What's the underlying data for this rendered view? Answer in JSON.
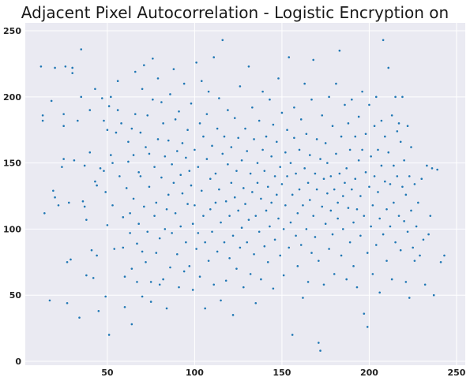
{
  "chart_data": {
    "type": "scatter",
    "title": "Adjacent Pixel Autocorrelation - Logistic Encryption on Image",
    "xlabel": "",
    "ylabel": "",
    "xlim": [
      3,
      255
    ],
    "ylim": [
      -3,
      256
    ],
    "xticks": [
      50,
      100,
      150,
      200,
      250
    ],
    "yticks": [
      0,
      50,
      100,
      150,
      200,
      250
    ],
    "grid": true,
    "colors": {
      "background": "#eaeaf2",
      "grid": "#ffffff",
      "point": "#1f77b4"
    },
    "points": [
      [
        12,
        223
      ],
      [
        13,
        186
      ],
      [
        13,
        182
      ],
      [
        14,
        112
      ],
      [
        17,
        46
      ],
      [
        18,
        197
      ],
      [
        19,
        129
      ],
      [
        20,
        222
      ],
      [
        20,
        124
      ],
      [
        22,
        118
      ],
      [
        24,
        147
      ],
      [
        25,
        187
      ],
      [
        25,
        178
      ],
      [
        25,
        153
      ],
      [
        26,
        223
      ],
      [
        27,
        75
      ],
      [
        27,
        44
      ],
      [
        28,
        120
      ],
      [
        29,
        77
      ],
      [
        30,
        218
      ],
      [
        30,
        222
      ],
      [
        31,
        152
      ],
      [
        33,
        182
      ],
      [
        34,
        33
      ],
      [
        35,
        236
      ],
      [
        35,
        200
      ],
      [
        36,
        121
      ],
      [
        37,
        148
      ],
      [
        37,
        117
      ],
      [
        38,
        65
      ],
      [
        38,
        107
      ],
      [
        40,
        158
      ],
      [
        40,
        190
      ],
      [
        41,
        84
      ],
      [
        42,
        63
      ],
      [
        43,
        136
      ],
      [
        43,
        206
      ],
      [
        44,
        133
      ],
      [
        44,
        80
      ],
      [
        45,
        38
      ],
      [
        46,
        146
      ],
      [
        47,
        199
      ],
      [
        48,
        144
      ],
      [
        48,
        182
      ],
      [
        49,
        49
      ],
      [
        49,
        128
      ],
      [
        50,
        103
      ],
      [
        50,
        175
      ],
      [
        51,
        20
      ],
      [
        51,
        193
      ],
      [
        52,
        200
      ],
      [
        52,
        156
      ],
      [
        53,
        150
      ],
      [
        53,
        118
      ],
      [
        54,
        85
      ],
      [
        55,
        173
      ],
      [
        56,
        212
      ],
      [
        56,
        190
      ],
      [
        57,
        140
      ],
      [
        58,
        180
      ],
      [
        59,
        109
      ],
      [
        59,
        86
      ],
      [
        60,
        64
      ],
      [
        60,
        41
      ],
      [
        61,
        131
      ],
      [
        62,
        166
      ],
      [
        62,
        151
      ],
      [
        63,
        112
      ],
      [
        63,
        97
      ],
      [
        64,
        176
      ],
      [
        64,
        70
      ],
      [
        64,
        28
      ],
      [
        65,
        123
      ],
      [
        65,
        156
      ],
      [
        66,
        219
      ],
      [
        66,
        187
      ],
      [
        67,
        89
      ],
      [
        67,
        60
      ],
      [
        68,
        143
      ],
      [
        68,
        104
      ],
      [
        69,
        173
      ],
      [
        69,
        140
      ],
      [
        70,
        49
      ],
      [
        70,
        206
      ],
      [
        70,
        83
      ],
      [
        71,
        224
      ],
      [
        71,
        117
      ],
      [
        72,
        162
      ],
      [
        72,
        75
      ],
      [
        73,
        98
      ],
      [
        73,
        186
      ],
      [
        74,
        157
      ],
      [
        74,
        132
      ],
      [
        75,
        45
      ],
      [
        75,
        60
      ],
      [
        76,
        229
      ],
      [
        76,
        198
      ],
      [
        77,
        147
      ],
      [
        77,
        110
      ],
      [
        78,
        120
      ],
      [
        78,
        82
      ],
      [
        79,
        168
      ],
      [
        79,
        214
      ],
      [
        80,
        93
      ],
      [
        80,
        58
      ],
      [
        81,
        196
      ],
      [
        81,
        139
      ],
      [
        82,
        180
      ],
      [
        82,
        62
      ],
      [
        83,
        155
      ],
      [
        83,
        100
      ],
      [
        84,
        115
      ],
      [
        84,
        40
      ],
      [
        85,
        167
      ],
      [
        85,
        126
      ],
      [
        86,
        202
      ],
      [
        86,
        71
      ],
      [
        87,
        149
      ],
      [
        87,
        97
      ],
      [
        88,
        221
      ],
      [
        88,
        135
      ],
      [
        89,
        183
      ],
      [
        89,
        112
      ],
      [
        90,
        159
      ],
      [
        90,
        81
      ],
      [
        91,
        56
      ],
      [
        91,
        189
      ],
      [
        92,
        141
      ],
      [
        92,
        102
      ],
      [
        93,
        127
      ],
      [
        93,
        165
      ],
      [
        94,
        68
      ],
      [
        94,
        210
      ],
      [
        95,
        154
      ],
      [
        95,
        90
      ],
      [
        96,
        119
      ],
      [
        96,
        175
      ],
      [
        97,
        144
      ],
      [
        97,
        72
      ],
      [
        98,
        195
      ],
      [
        98,
        133
      ],
      [
        99,
        104
      ],
      [
        99,
        54
      ],
      [
        100,
        160
      ],
      [
        100,
        118
      ],
      [
        101,
        85
      ],
      [
        101,
        226
      ],
      [
        102,
        147
      ],
      [
        102,
        97
      ],
      [
        103,
        180
      ],
      [
        103,
        64
      ],
      [
        104,
        212
      ],
      [
        104,
        129
      ],
      [
        105,
        170
      ],
      [
        105,
        110
      ],
      [
        106,
        90
      ],
      [
        106,
        40
      ],
      [
        107,
        153
      ],
      [
        107,
        187
      ],
      [
        108,
        76
      ],
      [
        108,
        204
      ],
      [
        109,
        138
      ],
      [
        109,
        115
      ],
      [
        110,
        163
      ],
      [
        110,
        98
      ],
      [
        111,
        58
      ],
      [
        111,
        230
      ],
      [
        112,
        142
      ],
      [
        112,
        120
      ],
      [
        113,
        176
      ],
      [
        113,
        83
      ],
      [
        114,
        199
      ],
      [
        114,
        130
      ],
      [
        115,
        105
      ],
      [
        115,
        46
      ],
      [
        116,
        157
      ],
      [
        116,
        243
      ],
      [
        117,
        90
      ],
      [
        117,
        170
      ],
      [
        118,
        121
      ],
      [
        118,
        61
      ],
      [
        119,
        149
      ],
      [
        119,
        190
      ],
      [
        120,
        110
      ],
      [
        120,
        78
      ],
      [
        121,
        135
      ],
      [
        121,
        162
      ],
      [
        122,
        95
      ],
      [
        122,
        35
      ],
      [
        123,
        184
      ],
      [
        123,
        124
      ],
      [
        124,
        144
      ],
      [
        124,
        70
      ],
      [
        125,
        169
      ],
      [
        125,
        114
      ],
      [
        126,
        86
      ],
      [
        126,
        208
      ],
      [
        127,
        152
      ],
      [
        127,
        101
      ],
      [
        128,
        131
      ],
      [
        128,
        56
      ],
      [
        129,
        176
      ],
      [
        129,
        119
      ],
      [
        130,
        159
      ],
      [
        130,
        90
      ],
      [
        131,
        107
      ],
      [
        131,
        223
      ],
      [
        132,
        142
      ],
      [
        132,
        66
      ],
      [
        133,
        192
      ],
      [
        133,
        128
      ],
      [
        134,
        168
      ],
      [
        134,
        81
      ],
      [
        135,
        110
      ],
      [
        135,
        44
      ],
      [
        136,
        150
      ],
      [
        136,
        135
      ],
      [
        137,
        98
      ],
      [
        137,
        182
      ],
      [
        138,
        123
      ],
      [
        138,
        62
      ],
      [
        139,
        160
      ],
      [
        139,
        204
      ],
      [
        140,
        87
      ],
      [
        140,
        144
      ],
      [
        141,
        114
      ],
      [
        141,
        170
      ],
      [
        142,
        132
      ],
      [
        142,
        75
      ],
      [
        143,
        198
      ],
      [
        143,
        102
      ],
      [
        144,
        155
      ],
      [
        144,
        120
      ],
      [
        145,
        55
      ],
      [
        145,
        179
      ],
      [
        146,
        140
      ],
      [
        146,
        92
      ],
      [
        147,
        166
      ],
      [
        147,
        126
      ],
      [
        148,
        108
      ],
      [
        148,
        214
      ],
      [
        149,
        147
      ],
      [
        149,
        80
      ],
      [
        150,
        188
      ],
      [
        150,
        134
      ],
      [
        151,
        100
      ],
      [
        151,
        65
      ],
      [
        152,
        158
      ],
      [
        152,
        118
      ],
      [
        153,
        175
      ],
      [
        153,
        140
      ],
      [
        154,
        86
      ],
      [
        154,
        230
      ],
      [
        155,
        150
      ],
      [
        155,
        105
      ],
      [
        156,
        126
      ],
      [
        156,
        20
      ],
      [
        157,
        169
      ],
      [
        157,
        192
      ],
      [
        158,
        95
      ],
      [
        158,
        142
      ],
      [
        159,
        112
      ],
      [
        159,
        72
      ],
      [
        160,
        160
      ],
      [
        160,
        130
      ],
      [
        161,
        183
      ],
      [
        161,
        88
      ],
      [
        162,
        118
      ],
      [
        162,
        48
      ],
      [
        163,
        146
      ],
      [
        163,
        210
      ],
      [
        164,
        100
      ],
      [
        164,
        172
      ],
      [
        165,
        135
      ],
      [
        165,
        60
      ],
      [
        166,
        156
      ],
      [
        166,
        122
      ],
      [
        167,
        198
      ],
      [
        167,
        82
      ],
      [
        168,
        110
      ],
      [
        168,
        228
      ],
      [
        169,
        142
      ],
      [
        169,
        94
      ],
      [
        170,
        168
      ],
      [
        170,
        130
      ],
      [
        171,
        76
      ],
      [
        171,
        14
      ],
      [
        172,
        153
      ],
      [
        172,
        8
      ],
      [
        173,
        117
      ],
      [
        173,
        186
      ],
      [
        174,
        138
      ],
      [
        174,
        58
      ],
      [
        175,
        165
      ],
      [
        175,
        104
      ],
      [
        176,
        127
      ],
      [
        176,
        150
      ],
      [
        177,
        85
      ],
      [
        177,
        200
      ],
      [
        178,
        114
      ],
      [
        178,
        140
      ],
      [
        179,
        178
      ],
      [
        179,
        96
      ],
      [
        180,
        130
      ],
      [
        180,
        66
      ],
      [
        181,
        157
      ],
      [
        181,
        210
      ],
      [
        182,
        108
      ],
      [
        182,
        120
      ],
      [
        183,
        142
      ],
      [
        183,
        235
      ],
      [
        184,
        80
      ],
      [
        184,
        170
      ],
      [
        185,
        125
      ],
      [
        185,
        100
      ],
      [
        186,
        194
      ],
      [
        186,
        135
      ],
      [
        187,
        62
      ],
      [
        187,
        146
      ],
      [
        188,
        116
      ],
      [
        188,
        180
      ],
      [
        189,
        90
      ],
      [
        189,
        160
      ],
      [
        190,
        130
      ],
      [
        190,
        198
      ],
      [
        191,
        72
      ],
      [
        191,
        105
      ],
      [
        192,
        138
      ],
      [
        192,
        170
      ],
      [
        193,
        115
      ],
      [
        193,
        56
      ],
      [
        194,
        185
      ],
      [
        194,
        152
      ],
      [
        195,
        95
      ],
      [
        195,
        125
      ],
      [
        196,
        160
      ],
      [
        196,
        204
      ],
      [
        197,
        110
      ],
      [
        197,
        36
      ],
      [
        198,
        143
      ],
      [
        198,
        172
      ],
      [
        199,
        82
      ],
      [
        199,
        26
      ],
      [
        200,
        132
      ],
      [
        200,
        194
      ],
      [
        201,
        102
      ],
      [
        201,
        155
      ],
      [
        202,
        118
      ],
      [
        202,
        66
      ],
      [
        203,
        178
      ],
      [
        203,
        140
      ],
      [
        204,
        88
      ],
      [
        204,
        200
      ],
      [
        205,
        128
      ],
      [
        205,
        160
      ],
      [
        206,
        108
      ],
      [
        206,
        52
      ],
      [
        207,
        148
      ],
      [
        207,
        182
      ],
      [
        208,
        96
      ],
      [
        208,
        243
      ],
      [
        209,
        136
      ],
      [
        209,
        170
      ],
      [
        210,
        115
      ],
      [
        210,
        76
      ],
      [
        211,
        222
      ],
      [
        211,
        158
      ],
      [
        212,
        102
      ],
      [
        212,
        134
      ],
      [
        213,
        186
      ],
      [
        213,
        62
      ],
      [
        214,
        148
      ],
      [
        214,
        120
      ],
      [
        215,
        200
      ],
      [
        215,
        90
      ],
      [
        216,
        174
      ],
      [
        216,
        140
      ],
      [
        217,
        110
      ],
      [
        217,
        180
      ],
      [
        218,
        166
      ],
      [
        218,
        84
      ],
      [
        219,
        132
      ],
      [
        219,
        200
      ],
      [
        220,
        106
      ],
      [
        220,
        152
      ],
      [
        221,
        60
      ],
      [
        221,
        126
      ],
      [
        222,
        178
      ],
      [
        222,
        98
      ],
      [
        223,
        140
      ],
      [
        223,
        48
      ],
      [
        224,
        114
      ],
      [
        224,
        162
      ],
      [
        225,
        86
      ],
      [
        226,
        134
      ],
      [
        226,
        76
      ],
      [
        227,
        102
      ],
      [
        228,
        120
      ],
      [
        229,
        80
      ],
      [
        230,
        138
      ],
      [
        231,
        92
      ],
      [
        232,
        58
      ],
      [
        233,
        148
      ],
      [
        234,
        96
      ],
      [
        235,
        110
      ],
      [
        236,
        146
      ],
      [
        237,
        50
      ],
      [
        239,
        145
      ],
      [
        241,
        75
      ],
      [
        243,
        80
      ]
    ]
  }
}
